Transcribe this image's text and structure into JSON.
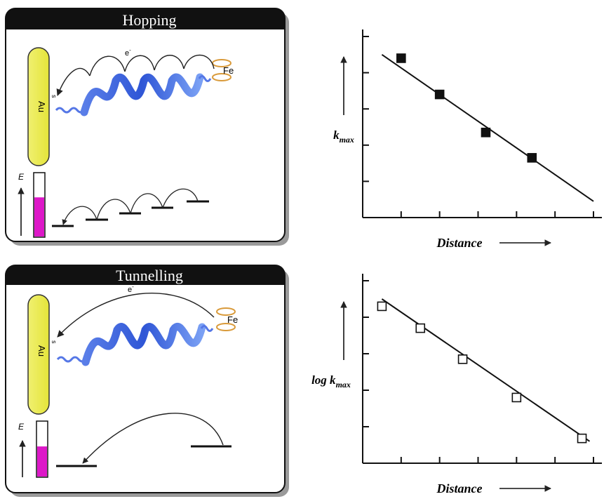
{
  "panels": [
    {
      "title": "Hopping",
      "electron_label": "e",
      "electron_sup": "-",
      "electrode_label": "Au",
      "sulfur_label": "s",
      "iron_label": "Fe",
      "energy_label": "E",
      "energy_fill_fraction": 0.62,
      "electron_transfer": "stepwise hops"
    },
    {
      "title": "Tunnelling",
      "electron_label": "e",
      "electron_sup": "-",
      "electrode_label": "Au",
      "sulfur_label": "s",
      "iron_label": "Fe",
      "energy_label": "E",
      "energy_fill_fraction": 0.55,
      "electron_transfer": "single jump"
    }
  ],
  "chart_data": [
    {
      "type": "scatter",
      "xlabel": "Distance",
      "ylabel_main": "k",
      "ylabel_sub": "max",
      "marker": "filled-square",
      "fit_line": true,
      "xlim": [
        0,
        6
      ],
      "ylim": [
        0,
        5
      ],
      "points": [
        [
          1,
          4.4
        ],
        [
          2,
          3.4
        ],
        [
          3.2,
          2.35
        ],
        [
          4.4,
          1.65
        ]
      ],
      "fit": [
        [
          0.5,
          4.5
        ],
        [
          6,
          0.45
        ]
      ]
    },
    {
      "type": "scatter",
      "xlabel": "Distance",
      "ylabel_main": "log k",
      "ylabel_sub": "max",
      "marker": "open-square",
      "fit_line": true,
      "xlim": [
        0,
        6
      ],
      "ylim": [
        0,
        5
      ],
      "points": [
        [
          0.5,
          4.3
        ],
        [
          1.5,
          3.7
        ],
        [
          2.6,
          2.85
        ],
        [
          4,
          1.8
        ],
        [
          5.7,
          0.68
        ]
      ],
      "fit": [
        [
          0.5,
          4.5
        ],
        [
          5.9,
          0.6
        ]
      ]
    }
  ]
}
